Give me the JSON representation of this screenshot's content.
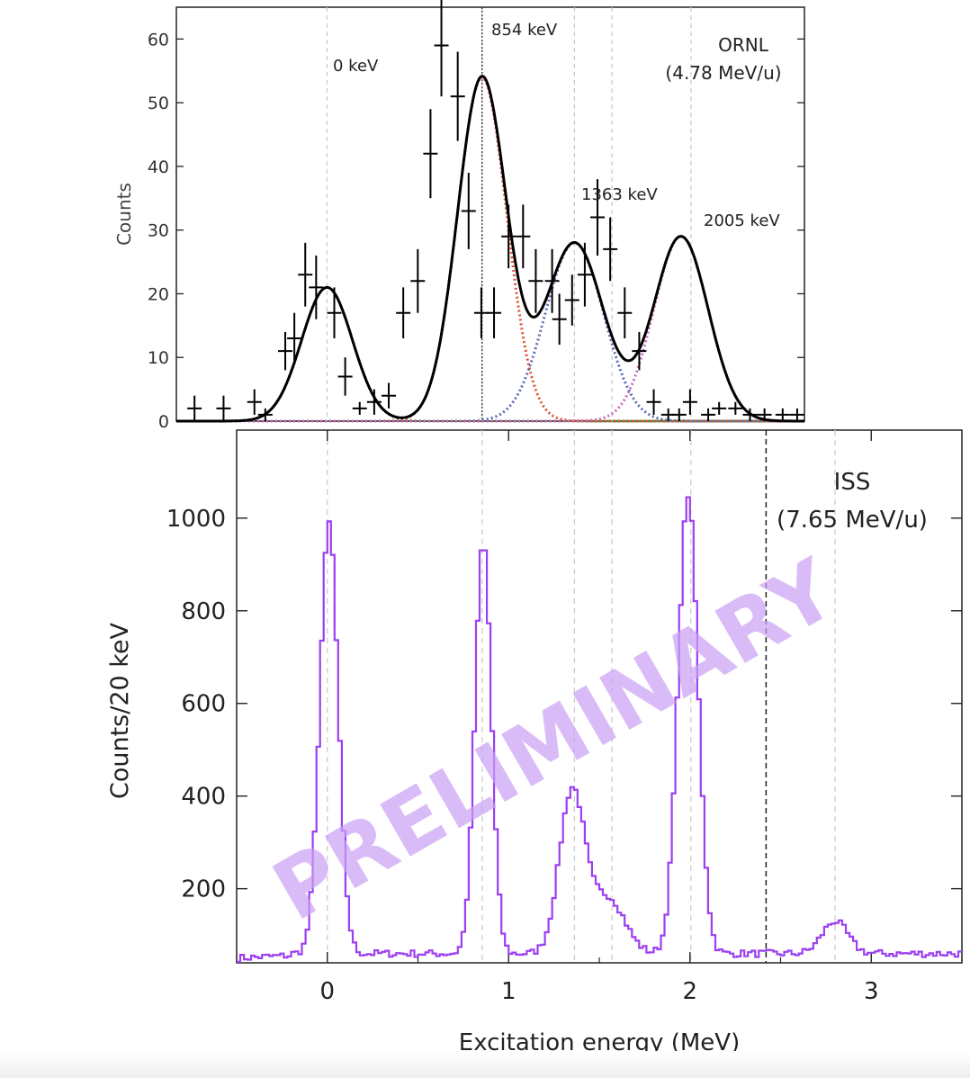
{
  "chart_data": [
    {
      "type": "scatter",
      "facility": "ORNL",
      "beam_energy": "(4.78 MeV/u)",
      "ylabel": "Counts",
      "xlim": [
        -0.83,
        2.63
      ],
      "ylim": [
        0,
        65
      ],
      "yticks": [
        0,
        10,
        20,
        30,
        40,
        50,
        60
      ],
      "grid": "dashed vertical lines at peak energies",
      "peak_labels": [
        {
          "text": "0 keV",
          "energy": 0.0
        },
        {
          "text": "854 keV",
          "energy": 0.854
        },
        {
          "text": "1363 keV",
          "energy": 1.363
        },
        {
          "text": "2005 keV",
          "energy": 2.005
        }
      ],
      "peak_lines_MeV": [
        0.0,
        0.854,
        1.363,
        1.57,
        2.005
      ],
      "points": {
        "x": [
          -0.73,
          -0.57,
          -0.4,
          -0.34,
          -0.23,
          -0.18,
          -0.12,
          -0.06,
          0.04,
          0.1,
          0.18,
          0.26,
          0.34,
          0.42,
          0.5,
          0.57,
          0.63,
          0.72,
          0.78,
          0.85,
          0.92,
          1.0,
          1.08,
          1.15,
          1.24,
          1.28,
          1.35,
          1.42,
          1.49,
          1.56,
          1.64,
          1.72,
          1.8,
          1.88,
          1.94,
          2.0,
          2.1,
          2.16,
          2.25,
          2.33,
          2.41,
          2.51,
          2.59
        ],
        "y": [
          2,
          2,
          3,
          1,
          11,
          13,
          23,
          21,
          17,
          7,
          2,
          3,
          4,
          17,
          22,
          42,
          59,
          51,
          33,
          17,
          17,
          29,
          29,
          22,
          22,
          16,
          19,
          23,
          32,
          27,
          17,
          11,
          3,
          1,
          1,
          3,
          1,
          2,
          2,
          1,
          1,
          1,
          1
        ],
        "yerr": [
          2,
          2,
          2,
          1,
          3,
          4,
          5,
          5,
          4,
          3,
          1,
          2,
          2,
          4,
          5,
          7,
          8,
          7,
          6,
          4,
          4,
          5,
          5,
          5,
          5,
          4,
          4,
          5,
          6,
          5,
          4,
          3,
          2,
          1,
          1,
          2,
          1,
          1,
          1,
          1,
          1,
          1,
          1
        ]
      },
      "fit_components": [
        {
          "color": "#4a9a3c",
          "center": 0.0,
          "amplitude": 21,
          "sigma": 0.14
        },
        {
          "color": "#e0502e",
          "center": 0.854,
          "amplitude": 54,
          "sigma": 0.135
        },
        {
          "color": "#5a6ab8",
          "center": 1.363,
          "amplitude": 28,
          "sigma": 0.16
        },
        {
          "color": "#cc66bb",
          "center": 1.95,
          "amplitude": 29,
          "sigma": 0.15
        }
      ],
      "fit_total_color": "#000000"
    },
    {
      "type": "line",
      "facility": "ISS",
      "beam_energy": "(7.65 MeV/u)",
      "watermark": "PRELIMINARY",
      "watermark_color": "#c9a0f5",
      "line_color": "#9b3ff0",
      "xlabel": "Excitation energy (MeV)",
      "ylabel": "Counts/20 keV",
      "xlim": [
        -0.5,
        3.5
      ],
      "ylim": [
        40,
        1190
      ],
      "xticks": [
        0,
        1,
        2,
        3
      ],
      "yticks": [
        200,
        400,
        600,
        800,
        1000
      ],
      "grid": "dashed vertical lines at peak energies",
      "peak_lines_MeV": [
        0.0,
        0.854,
        1.363,
        1.57,
        2.005,
        2.8
      ],
      "threshold_line_MeV": 2.42,
      "bin_width_MeV": 0.02,
      "background": 60,
      "peaks": [
        {
          "center": 0.01,
          "height": 930,
          "sigma": 0.05
        },
        {
          "center": 0.86,
          "height": 890,
          "sigma": 0.045
        },
        {
          "center": 1.35,
          "height": 350,
          "sigma": 0.07
        },
        {
          "center": 1.55,
          "height": 120,
          "sigma": 0.09
        },
        {
          "center": 1.99,
          "height": 990,
          "sigma": 0.055
        },
        {
          "center": 2.8,
          "height": 70,
          "sigma": 0.07
        }
      ]
    }
  ]
}
